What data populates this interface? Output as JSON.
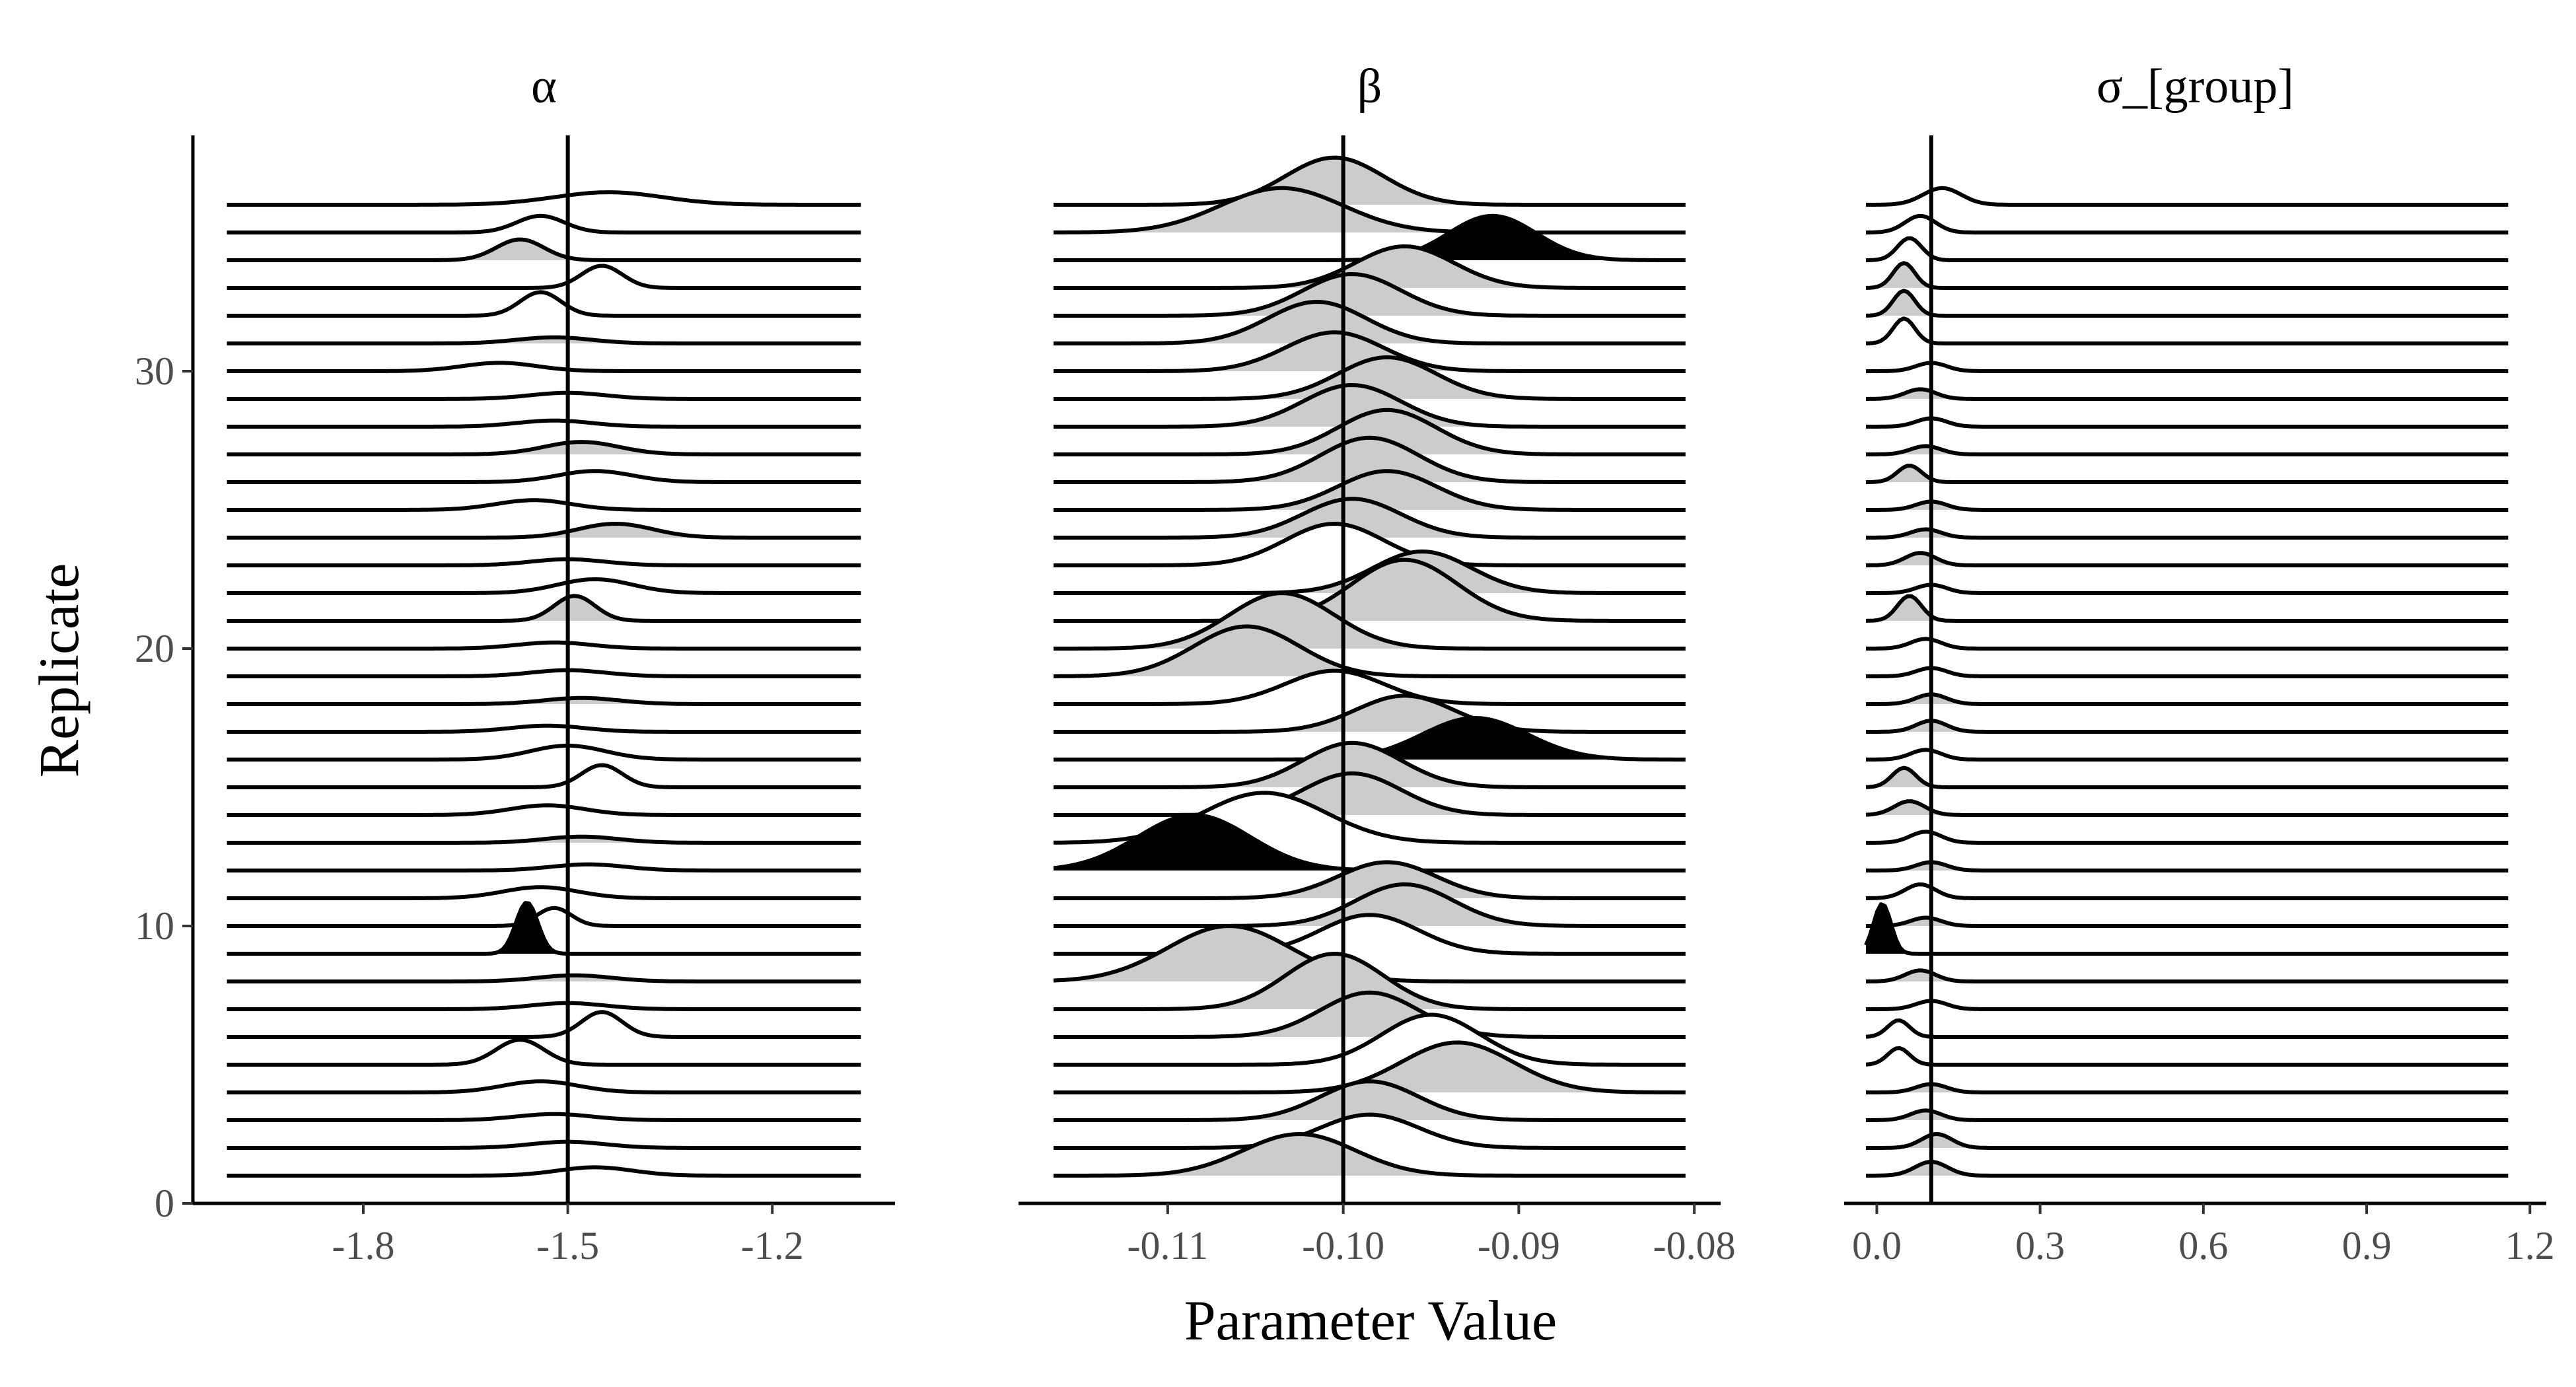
{
  "chart_data": {
    "type": "ridgeline",
    "xlabel": "Parameter Value",
    "ylabel": "Replicate",
    "y_ticks": [
      0,
      10,
      20,
      30
    ],
    "y_tick_labels": [
      "0",
      "10",
      "20",
      "30"
    ],
    "ylim": [
      0,
      38.5
    ],
    "replicates": 36,
    "colors": {
      "fill": "#cccccc",
      "highlight": "#000000",
      "line": "#000000"
    },
    "panels": [
      {
        "strip_label": "α",
        "xlim": [
          -2.05,
          -1.02
        ],
        "line_range": [
          -2.0,
          -1.07
        ],
        "x_ticks": [
          -1.8,
          -1.5,
          -1.2
        ],
        "x_tick_labels": [
          "-1.8",
          "-1.5",
          "-1.2"
        ],
        "true_value": -1.5,
        "default_width": 0.055,
        "default_height": 0.22,
        "shaded_replicates": [
          8,
          13,
          18,
          21,
          24,
          27,
          31,
          34
        ],
        "highlight_replicates": [
          9
        ],
        "peaks": [
          {
            "replicate": 1,
            "mean": -1.46,
            "height": 0.3
          },
          {
            "replicate": 2,
            "mean": -1.5
          },
          {
            "replicate": 3,
            "mean": -1.52
          },
          {
            "replicate": 4,
            "mean": -1.54,
            "height": 0.4
          },
          {
            "replicate": 5,
            "mean": -1.57,
            "height": 0.9,
            "width": 0.035
          },
          {
            "replicate": 6,
            "mean": -1.45,
            "height": 0.9,
            "width": 0.03
          },
          {
            "replicate": 7,
            "mean": -1.5
          },
          {
            "replicate": 8,
            "mean": -1.49
          },
          {
            "replicate": 9,
            "mean": -1.56,
            "height": 1.85,
            "width": 0.016
          },
          {
            "replicate": 10,
            "mean": -1.52,
            "height": 0.65,
            "width": 0.025
          },
          {
            "replicate": 11,
            "mean": -1.54,
            "height": 0.4
          },
          {
            "replicate": 12,
            "mean": -1.47
          },
          {
            "replicate": 13,
            "mean": -1.48
          },
          {
            "replicate": 14,
            "mean": -1.53,
            "height": 0.35
          },
          {
            "replicate": 15,
            "mean": -1.45,
            "height": 0.8,
            "width": 0.03
          },
          {
            "replicate": 16,
            "mean": -1.5,
            "height": 0.5
          },
          {
            "replicate": 17,
            "mean": -1.53
          },
          {
            "replicate": 18,
            "mean": -1.48
          },
          {
            "replicate": 19,
            "mean": -1.5
          },
          {
            "replicate": 20,
            "mean": -1.52
          },
          {
            "replicate": 21,
            "mean": -1.49,
            "height": 0.9,
            "width": 0.03
          },
          {
            "replicate": 22,
            "mean": -1.46,
            "height": 0.5
          },
          {
            "replicate": 23,
            "mean": -1.5
          },
          {
            "replicate": 24,
            "mean": -1.43,
            "height": 0.5
          },
          {
            "replicate": 25,
            "mean": -1.55,
            "height": 0.35
          },
          {
            "replicate": 26,
            "mean": -1.46,
            "height": 0.4
          },
          {
            "replicate": 27,
            "mean": -1.48,
            "height": 0.45
          },
          {
            "replicate": 28,
            "mean": -1.52
          },
          {
            "replicate": 29,
            "mean": -1.5
          },
          {
            "replicate": 30,
            "mean": -1.6,
            "height": 0.3
          },
          {
            "replicate": 31,
            "mean": -1.52
          },
          {
            "replicate": 32,
            "mean": -1.54,
            "height": 0.85,
            "width": 0.03
          },
          {
            "replicate": 33,
            "mean": -1.45,
            "height": 0.8,
            "width": 0.03
          },
          {
            "replicate": 34,
            "mean": -1.57,
            "height": 0.75,
            "width": 0.035
          },
          {
            "replicate": 35,
            "mean": -1.54,
            "height": 0.6,
            "width": 0.035
          },
          {
            "replicate": 36,
            "mean": -1.44,
            "height": 0.45,
            "width": 0.08
          }
        ]
      },
      {
        "strip_label": "β",
        "xlim": [
          -0.1185,
          -0.0785
        ],
        "line_range": [
          -0.1165,
          -0.0805
        ],
        "x_ticks": [
          -0.11,
          -0.1,
          -0.09,
          -0.08
        ],
        "x_tick_labels": [
          "-0.11",
          "-0.10",
          "-0.09",
          "-0.08"
        ],
        "true_value": -0.1,
        "default_width": 0.0028,
        "default_height": 1.4,
        "shaded_replicates": [
          1,
          3,
          4,
          6,
          7,
          8,
          10,
          11,
          12,
          14,
          15,
          16,
          17,
          19,
          20,
          21,
          22,
          24,
          25,
          26,
          27,
          28,
          29,
          30,
          31,
          32,
          33,
          35,
          36
        ],
        "highlight_replicates": [
          12,
          16,
          34
        ],
        "peaks": [
          {
            "replicate": 1,
            "mean": -0.1025,
            "height": 1.5,
            "width": 0.0032
          },
          {
            "replicate": 2,
            "mean": -0.0985,
            "height": 1.2
          },
          {
            "replicate": 3,
            "mean": -0.0985,
            "height": 1.4
          },
          {
            "replicate": 4,
            "mean": -0.0935,
            "height": 1.8,
            "width": 0.0032
          },
          {
            "replicate": 5,
            "mean": -0.095,
            "height": 1.8
          },
          {
            "replicate": 6,
            "mean": -0.0985,
            "height": 1.6
          },
          {
            "replicate": 7,
            "mean": -0.1005,
            "height": 2.0
          },
          {
            "replicate": 8,
            "mean": -0.1065,
            "height": 2.0,
            "width": 0.0035
          },
          {
            "replicate": 9,
            "mean": -0.0985,
            "height": 1.4
          },
          {
            "replicate": 10,
            "mean": -0.0965,
            "height": 1.5
          },
          {
            "replicate": 11,
            "mean": -0.0975,
            "height": 1.3
          },
          {
            "replicate": 12,
            "mean": -0.1085,
            "height": 2.0,
            "width": 0.0032
          },
          {
            "replicate": 13,
            "mean": -0.1045,
            "height": 1.8,
            "width": 0.0035
          },
          {
            "replicate": 14,
            "mean": -0.0995,
            "height": 1.5
          },
          {
            "replicate": 15,
            "mean": -0.0995,
            "height": 1.6
          },
          {
            "replicate": 16,
            "mean": -0.0925,
            "height": 1.5,
            "width": 0.003
          },
          {
            "replicate": 17,
            "mean": -0.0965,
            "height": 1.3
          },
          {
            "replicate": 18,
            "mean": -0.1005,
            "height": 1.2
          },
          {
            "replicate": 19,
            "mean": -0.1055,
            "height": 1.8,
            "width": 0.003
          },
          {
            "replicate": 20,
            "mean": -0.1035,
            "height": 2.0,
            "width": 0.003
          },
          {
            "replicate": 21,
            "mean": -0.0965,
            "height": 2.2,
            "width": 0.003
          },
          {
            "replicate": 22,
            "mean": -0.0955,
            "height": 1.5
          },
          {
            "replicate": 23,
            "mean": -0.1005,
            "height": 1.5
          },
          {
            "replicate": 24,
            "mean": -0.0995,
            "height": 1.4
          },
          {
            "replicate": 25,
            "mean": -0.0975,
            "height": 1.4
          },
          {
            "replicate": 26,
            "mean": -0.0985,
            "height": 1.6
          },
          {
            "replicate": 27,
            "mean": -0.0975,
            "height": 1.6
          },
          {
            "replicate": 28,
            "mean": -0.0995,
            "height": 1.5
          },
          {
            "replicate": 29,
            "mean": -0.0975,
            "height": 1.5
          },
          {
            "replicate": 30,
            "mean": -0.1005,
            "height": 1.4
          },
          {
            "replicate": 31,
            "mean": -0.1015,
            "height": 1.5
          },
          {
            "replicate": 32,
            "mean": -0.0995,
            "height": 1.5
          },
          {
            "replicate": 33,
            "mean": -0.0965,
            "height": 1.5
          },
          {
            "replicate": 34,
            "mean": -0.0915,
            "height": 1.6,
            "width": 0.0025
          },
          {
            "replicate": 35,
            "mean": -0.1035,
            "height": 1.6,
            "width": 0.0035
          },
          {
            "replicate": 36,
            "mean": -0.1005,
            "height": 1.7,
            "width": 0.0028
          }
        ]
      },
      {
        "strip_label": "σ_[group]",
        "xlim": [
          -0.06,
          1.23
        ],
        "line_range": [
          -0.02,
          1.16
        ],
        "x_ticks": [
          0.0,
          0.3,
          0.6,
          0.9,
          1.2
        ],
        "x_tick_labels": [
          "0.0",
          "0.3",
          "0.6",
          "0.9",
          "1.2"
        ],
        "true_value": 0.1,
        "default_width": 0.028,
        "default_height": 0.35,
        "shaded_replicates": [
          1,
          2,
          3,
          4,
          8,
          9,
          10,
          12,
          14,
          15,
          17,
          18,
          21,
          23,
          24,
          25,
          26,
          27,
          29,
          32,
          33
        ],
        "highlight_replicates": [
          9
        ],
        "peaks": [
          {
            "replicate": 1,
            "mean": 0.1,
            "height": 0.5,
            "width": 0.03
          },
          {
            "replicate": 2,
            "mean": 0.11,
            "height": 0.5
          },
          {
            "replicate": 3,
            "mean": 0.09,
            "height": 0.35
          },
          {
            "replicate": 4,
            "mean": 0.1,
            "height": 0.3
          },
          {
            "replicate": 5,
            "mean": 0.04,
            "height": 0.6,
            "width": 0.02
          },
          {
            "replicate": 6,
            "mean": 0.04,
            "height": 0.6,
            "width": 0.02
          },
          {
            "replicate": 7,
            "mean": 0.1,
            "height": 0.3
          },
          {
            "replicate": 8,
            "mean": 0.08,
            "height": 0.4
          },
          {
            "replicate": 9,
            "mean": 0.01,
            "height": 1.8,
            "width": 0.016
          },
          {
            "replicate": 10,
            "mean": 0.09,
            "height": 0.3
          },
          {
            "replicate": 11,
            "mean": 0.08,
            "height": 0.5
          },
          {
            "replicate": 12,
            "mean": 0.1,
            "height": 0.3
          },
          {
            "replicate": 13,
            "mean": 0.09,
            "height": 0.4
          },
          {
            "replicate": 14,
            "mean": 0.06,
            "height": 0.5
          },
          {
            "replicate": 15,
            "mean": 0.05,
            "height": 0.7,
            "width": 0.022
          },
          {
            "replicate": 16,
            "mean": 0.09,
            "height": 0.35
          },
          {
            "replicate": 17,
            "mean": 0.1,
            "height": 0.4
          },
          {
            "replicate": 18,
            "mean": 0.1,
            "height": 0.35
          },
          {
            "replicate": 19,
            "mean": 0.1,
            "height": 0.3
          },
          {
            "replicate": 20,
            "mean": 0.09,
            "height": 0.35
          },
          {
            "replicate": 21,
            "mean": 0.06,
            "height": 0.9,
            "width": 0.022
          },
          {
            "replicate": 22,
            "mean": 0.1,
            "height": 0.3
          },
          {
            "replicate": 23,
            "mean": 0.08,
            "height": 0.45
          },
          {
            "replicate": 24,
            "mean": 0.09,
            "height": 0.3
          },
          {
            "replicate": 25,
            "mean": 0.1,
            "height": 0.3
          },
          {
            "replicate": 26,
            "mean": 0.06,
            "height": 0.6,
            "width": 0.022
          },
          {
            "replicate": 27,
            "mean": 0.09,
            "height": 0.3
          },
          {
            "replicate": 28,
            "mean": 0.1,
            "height": 0.3
          },
          {
            "replicate": 29,
            "mean": 0.08,
            "height": 0.35
          },
          {
            "replicate": 30,
            "mean": 0.1,
            "height": 0.3
          },
          {
            "replicate": 31,
            "mean": 0.05,
            "height": 0.9,
            "width": 0.02
          },
          {
            "replicate": 32,
            "mean": 0.05,
            "height": 0.9,
            "width": 0.02
          },
          {
            "replicate": 33,
            "mean": 0.05,
            "height": 0.9,
            "width": 0.02
          },
          {
            "replicate": 34,
            "mean": 0.06,
            "height": 0.8,
            "width": 0.022
          },
          {
            "replicate": 35,
            "mean": 0.08,
            "height": 0.6
          },
          {
            "replicate": 36,
            "mean": 0.12,
            "height": 0.6,
            "width": 0.035
          }
        ]
      }
    ]
  }
}
